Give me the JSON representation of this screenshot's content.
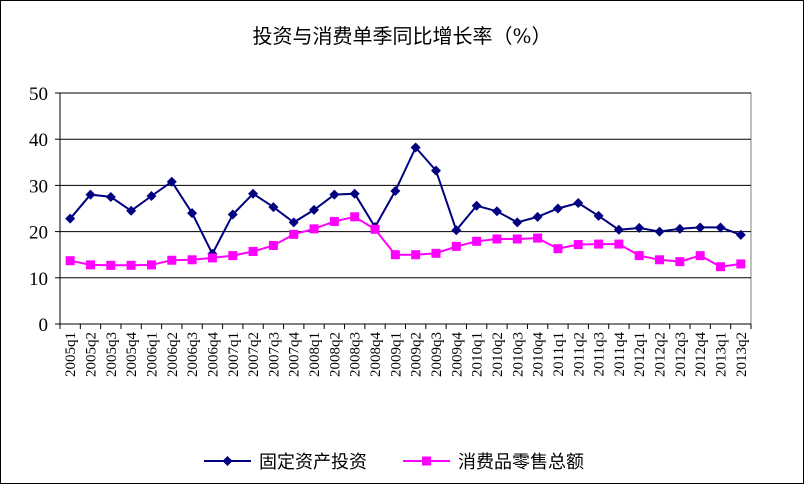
{
  "chart_data": {
    "type": "line",
    "title": "投资与消费单季同比增长率（%）",
    "xlabel": "",
    "ylabel": "",
    "ylim": [
      0,
      50
    ],
    "yticks": [
      "0",
      "10",
      "20",
      "30",
      "40",
      "50"
    ],
    "grid": true,
    "legend_position": "bottom",
    "categories": [
      "2005q1",
      "2005q2",
      "2005q3",
      "2005q4",
      "2006q1",
      "2006q2",
      "2006q3",
      "2006q4",
      "2007q1",
      "2007q2",
      "2007q3",
      "2007q4",
      "2008q1",
      "2008q2",
      "2008q3",
      "2008q4",
      "2009q1",
      "2009q2",
      "2009q3",
      "2009q4",
      "2010q1",
      "2010q2",
      "2010q3",
      "2010q4",
      "2011q1",
      "2011q2",
      "2011q3",
      "2011q4",
      "2012q1",
      "2012q2",
      "2012q3",
      "2012q4",
      "2013q1",
      "2013q2"
    ],
    "series": [
      {
        "name": "固定资产投资",
        "color": "#000080",
        "marker": "diamond",
        "values": [
          22.8,
          28.0,
          27.5,
          24.5,
          27.7,
          30.8,
          24.0,
          15.2,
          23.7,
          28.2,
          25.3,
          22.0,
          24.7,
          28.0,
          28.2,
          21.0,
          28.8,
          38.2,
          33.2,
          20.3,
          25.6,
          24.4,
          22.0,
          23.2,
          25.0,
          26.2,
          23.4,
          20.4,
          20.8,
          20.0,
          20.6,
          20.9,
          20.9,
          19.3
        ]
      },
      {
        "name": "消费品零售总额",
        "color": "#FF00FF",
        "marker": "square",
        "values": [
          13.7,
          12.8,
          12.7,
          12.7,
          12.8,
          13.8,
          13.9,
          14.3,
          14.8,
          15.7,
          17.0,
          19.4,
          20.6,
          22.2,
          23.2,
          20.5,
          15.0,
          15.0,
          15.3,
          16.8,
          17.9,
          18.4,
          18.4,
          18.6,
          16.3,
          17.2,
          17.3,
          17.3,
          14.8,
          13.9,
          13.5,
          14.8,
          12.4,
          13.0
        ]
      }
    ]
  }
}
